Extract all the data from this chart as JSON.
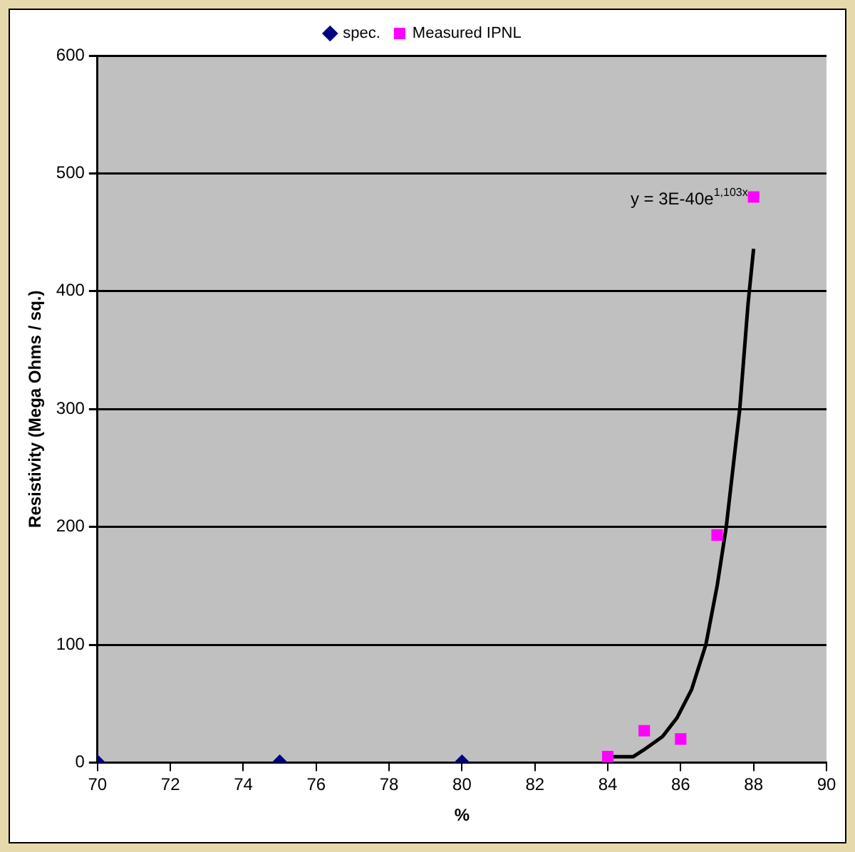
{
  "chart_data": {
    "type": "scatter",
    "xlabel": "%",
    "ylabel": "Resistivity (Mega Ohms / sq.)",
    "xlim": [
      70,
      90
    ],
    "xticks": [
      70,
      72,
      74,
      76,
      78,
      80,
      82,
      84,
      86,
      88,
      90
    ],
    "ylim": [
      0,
      600
    ],
    "yticks": [
      0,
      100,
      200,
      300,
      400,
      500,
      600
    ],
    "grid": "y",
    "legend": "top",
    "series": [
      {
        "name": "spec.",
        "color": "#000080",
        "marker": "diamond",
        "x": [
          70,
          75,
          80
        ],
        "values": [
          0,
          0,
          0
        ]
      },
      {
        "name": "Measured IPNL",
        "color": "#ff00ff",
        "marker": "square",
        "x": [
          84,
          85,
          86,
          87,
          88
        ],
        "values": [
          5,
          27,
          20,
          193,
          480
        ]
      },
      {
        "type": "line",
        "color": "#000000",
        "marker": "none",
        "x": [
          84,
          84.7,
          85,
          85.5,
          85.9,
          86.3,
          86.69,
          87,
          87.25,
          87.62,
          87.85,
          88
        ],
        "values": [
          5,
          5,
          11,
          22,
          38,
          62,
          100,
          150,
          200,
          300,
          390,
          436
        ]
      }
    ],
    "annotations": [
      {
        "text": "y = 3E-40e$^{1,103x}$",
        "x": 88,
        "y": 430
      }
    ]
  }
}
